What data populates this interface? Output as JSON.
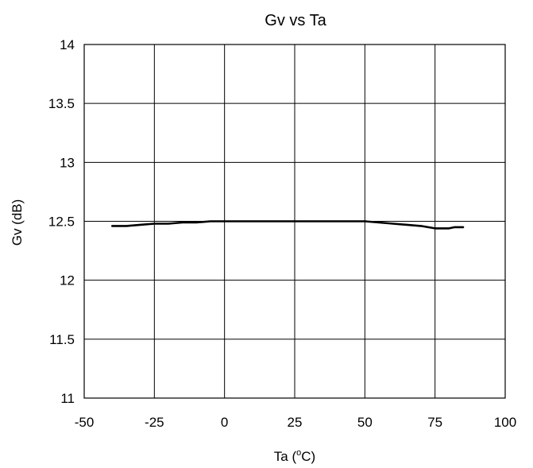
{
  "chart_data": {
    "type": "line",
    "title": "Gv vs Ta",
    "xlabel_prefix": "Ta (",
    "xlabel_sup": "o",
    "xlabel_suffix": "C)",
    "ylabel": "Gv (dB)",
    "xlim": [
      -50,
      100
    ],
    "ylim": [
      11,
      14
    ],
    "xticks": [
      -50,
      -25,
      0,
      25,
      50,
      75,
      100
    ],
    "yticks": [
      11,
      11.5,
      12,
      12.5,
      13,
      13.5,
      14
    ],
    "xtick_labels": [
      "-50",
      "-25",
      "0",
      "25",
      "50",
      "75",
      "100"
    ],
    "ytick_labels": [
      "11",
      "11.5",
      "12",
      "12.5",
      "13",
      "13.5",
      "14"
    ],
    "grid": true,
    "legend": "none",
    "line_color": "#000000",
    "series": [
      {
        "x": [
          -40,
          -35,
          -30,
          -25,
          -20,
          -15,
          -10,
          -5,
          0,
          25,
          50,
          55,
          60,
          65,
          70,
          75,
          80,
          82,
          85
        ],
        "values": [
          12.46,
          12.46,
          12.47,
          12.48,
          12.48,
          12.49,
          12.49,
          12.5,
          12.5,
          12.5,
          12.5,
          12.49,
          12.48,
          12.47,
          12.46,
          12.44,
          12.44,
          12.45,
          12.45
        ]
      }
    ]
  }
}
